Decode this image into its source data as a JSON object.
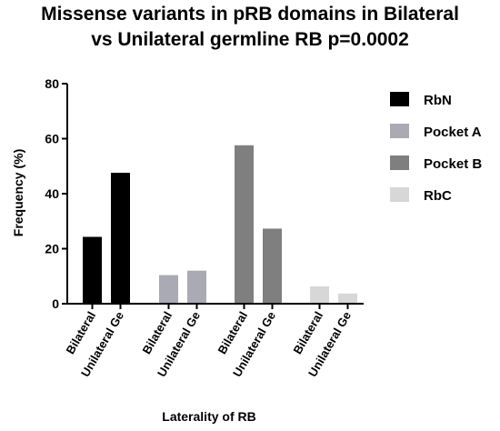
{
  "chart_data": {
    "type": "bar",
    "title_lines": [
      "Missense variants in pRB domains in Bilateral",
      "vs Unilateral germline RB p=0.0002"
    ],
    "xlabel": "Laterality of RB",
    "ylabel": "Frequency (%)",
    "ylim": [
      0,
      80
    ],
    "yticks": [
      "0",
      "20",
      "40",
      "60",
      "80"
    ],
    "categories": [
      "Bilateral",
      "Unilateral Ge"
    ],
    "series": [
      {
        "name": "RbN",
        "color": "#000000",
        "values": [
          24.3,
          47.6
        ]
      },
      {
        "name": "Pocket A",
        "color": "#aaaab4",
        "values": [
          10.4,
          12.0
        ]
      },
      {
        "name": "Pocket B",
        "color": "#7f7f7f",
        "values": [
          57.6,
          27.3
        ]
      },
      {
        "name": "RbC",
        "color": "#d7d7d7",
        "values": [
          6.3,
          3.7
        ]
      }
    ],
    "grid": false,
    "legend_position": "right"
  }
}
